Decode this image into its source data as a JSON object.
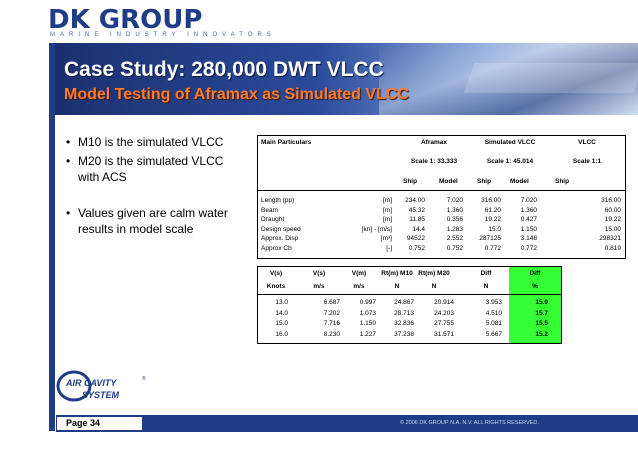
{
  "header": {
    "logo_text": "DK GROUP",
    "tagline": "MARINE INDUSTRY INNOVATORS",
    "title": "Case Study: 280,000 DWT VLCC",
    "subtitle": "Model Testing of Aframax as Simulated VLCC"
  },
  "bullets": [
    "M10 is the simulated VLCC",
    "M20 is the simulated VLCC with ACS",
    "Values given are calm water results in model scale"
  ],
  "particulars": {
    "title": "Main Particulars",
    "col_groups": [
      "Aframax",
      "Simulated VLCC",
      "VLCC"
    ],
    "scales": [
      "Scale 1:  33.333",
      "Scale 1:  45.014",
      "Scale 1:1"
    ],
    "subheads": [
      "Ship",
      "Model",
      "Ship",
      "Model",
      "Ship"
    ],
    "rows": [
      {
        "name": "Length (pp)",
        "unit": "[m]",
        "vals": [
          "234.00",
          "7.020",
          "316.00",
          "7.020",
          "316.00"
        ]
      },
      {
        "name": "Beam",
        "unit": "[m]",
        "vals": [
          "45.32",
          "1.360",
          "61.20",
          "1.360",
          "60.00"
        ]
      },
      {
        "name": "Draught",
        "unit": "[m]",
        "vals": [
          "11.85",
          "0.356",
          "19.22",
          "0.427",
          "19.22"
        ]
      },
      {
        "name": "Design speed",
        "unit": "[kn] - [m/s]",
        "vals": [
          "14.4",
          "1.283",
          "15.0",
          "1.150",
          "15.00"
        ]
      },
      {
        "name": "Approx. Disp",
        "unit": "[m³]",
        "vals": [
          "94522",
          "2.552",
          "287125",
          "3.148",
          "298321"
        ]
      },
      {
        "name": "Approx Cb",
        "unit": "[-]",
        "vals": [
          "0.752",
          "0.752",
          "0.772",
          "0.772",
          "0.819"
        ]
      }
    ]
  },
  "results": {
    "headers": [
      "V(s)",
      "V(s)",
      "V(m)",
      "Rt(m) M10",
      "Rt(m) M20",
      "Diff",
      "Diff"
    ],
    "units": [
      "Knots",
      "m/s",
      "m/s",
      "N",
      "N",
      "N",
      "%"
    ],
    "rows": [
      [
        "13.0",
        "6.687",
        "0.997",
        "24.867",
        "20.914",
        "3.953",
        "15.9"
      ],
      [
        "14.0",
        "7.202",
        "1.073",
        "28.713",
        "24.203",
        "4.510",
        "15.7"
      ],
      [
        "15.0",
        "7.716",
        "1.150",
        "32.836",
        "27.755",
        "5.081",
        "15.5"
      ],
      [
        "16.0",
        "8.230",
        "1.227",
        "37.238",
        "31.571",
        "5.667",
        "15.2"
      ]
    ]
  },
  "logo": {
    "name1": "AIR CAVITY",
    "name2": "SYSTEM",
    "mark": "®"
  },
  "footer": {
    "page": "Page 34",
    "copyright": "© 2006 DK GROUP N.A. N.V. ALL RIGHTS RESERVED."
  }
}
